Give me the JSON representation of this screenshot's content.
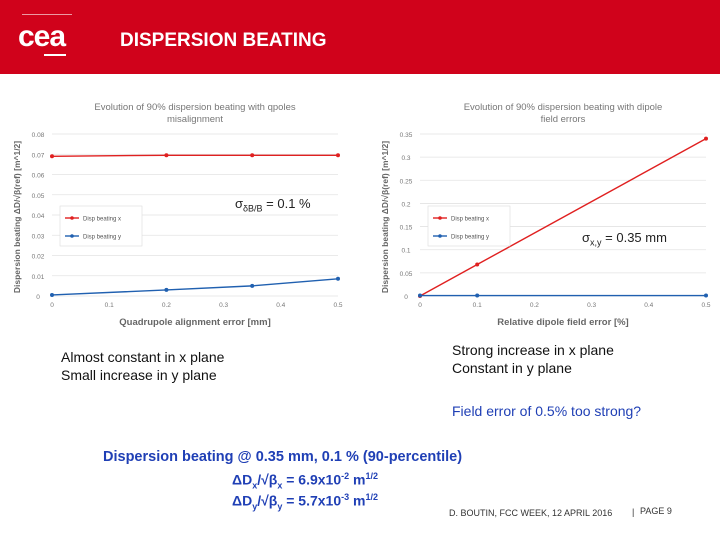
{
  "header": {
    "logo": "cea",
    "title": "DISPERSION BEATING"
  },
  "chart_data": [
    {
      "type": "line",
      "title": "Evolution of 90% dispersion beating with qpoles misalignment",
      "xlabel": "Quadrupole alignment error [mm]",
      "ylabel": "Dispersion beating ΔD/√β(ref) [m^1/2]",
      "x": [
        0,
        0.2,
        0.35,
        0.5
      ],
      "xticks": [
        "0",
        "0.1",
        "0.2",
        "0.3",
        "0.4",
        "0.5"
      ],
      "yticks": [
        "0",
        "0.01",
        "0.02",
        "0.03",
        "0.04",
        "0.05",
        "0.06",
        "0.07",
        "0.08"
      ],
      "xlim": [
        0,
        0.5
      ],
      "ylim": [
        0,
        0.08
      ],
      "legend_position": "middle-left",
      "series": [
        {
          "name": "Disp beating x",
          "color": "#e02020",
          "values": [
            0.069,
            0.0695,
            0.0695,
            0.0695
          ]
        },
        {
          "name": "Disp beating y",
          "color": "#2060b0",
          "values": [
            0.0005,
            0.003,
            0.005,
            0.0085
          ]
        }
      ]
    },
    {
      "type": "line",
      "title": "Evolution of 90% dispersion beating with dipole field errors",
      "xlabel": "Relative dipole field error [%]",
      "ylabel": "Dispersion beating ΔD/√β(ref) [m^1/2]",
      "x": [
        0,
        0.1,
        0.5
      ],
      "xticks": [
        "0",
        "0.1",
        "0.2",
        "0.3",
        "0.4",
        "0.5"
      ],
      "yticks": [
        "0",
        "0.05",
        "0.1",
        "0.15",
        "0.2",
        "0.25",
        "0.3",
        "0.35"
      ],
      "xlim": [
        0,
        0.5
      ],
      "ylim": [
        0,
        0.35
      ],
      "legend_position": "middle-left",
      "series": [
        {
          "name": "Disp beating x",
          "color": "#e02020",
          "values": [
            0,
            0.068,
            0.34
          ]
        },
        {
          "name": "Disp beating y",
          "color": "#2060b0",
          "values": [
            0.001,
            0.001,
            0.001
          ]
        }
      ]
    }
  ],
  "annotations": {
    "sigma_left": "σδB/B = 0.1 %",
    "sigma_left_sym": "σ",
    "sigma_left_sub": "δB/B",
    "sigma_left_val": " = 0.1 %",
    "sigma_right_sym": "σ",
    "sigma_right_sub": "x,y",
    "sigma_right_val": " = 0.35 mm"
  },
  "notes": {
    "left_line1": "Almost constant in x plane",
    "left_line2": "Small increase in y plane",
    "right_line1": "Strong increase in x plane",
    "right_line2": "Constant in y plane",
    "question": "Field error of 0.5% too strong?"
  },
  "summary": {
    "line1": "Dispersion beating @ 0.35 mm, 0.1 % (90-percentile)",
    "dx_prefix": "ΔD",
    "dx_sub": "x",
    "dx_mid": "/√β",
    "dx_sub2": "x",
    "dx_val": " = 6.9x10",
    "dx_exp": "-2",
    "dx_unit": " m",
    "dx_unit_exp": "1/2",
    "dy_prefix": "ΔD",
    "dy_sub": "y",
    "dy_mid": "/√β",
    "dy_sub2": "y",
    "dy_val": " = 5.7x10",
    "dy_exp": "-3",
    "dy_unit": " m",
    "dy_unit_exp": "1/2"
  },
  "footer": {
    "text": "D. BOUTIN, FCC WEEK, 12 APRIL 2016",
    "page": "PAGE 9"
  }
}
